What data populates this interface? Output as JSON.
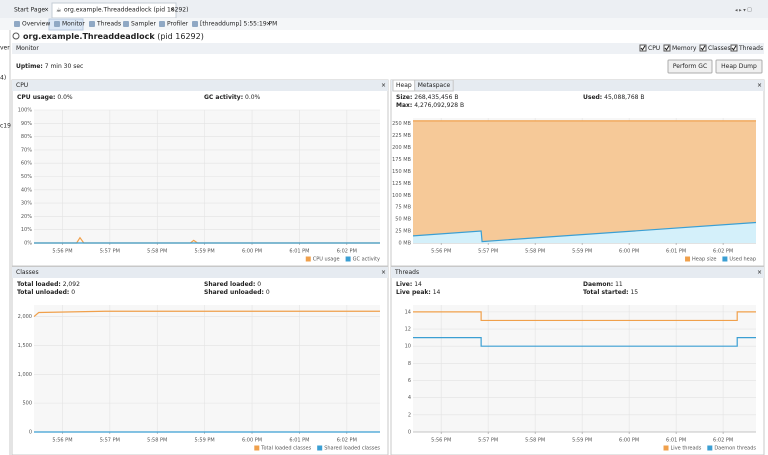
{
  "tabs": [
    "Start Page",
    "org.example.Threaddeadlock (pid 16292)"
  ],
  "left_sliver": [
    "ver",
    "4)",
    "c19"
  ],
  "subtabs": [
    "Overview",
    "Monitor",
    "Threads",
    "Sampler",
    "Profiler",
    "[threaddump] 5:55:19 PM"
  ],
  "header": {
    "title": "org.example.Threaddeadlock",
    "pid": "(pid 16292)"
  },
  "monitor": {
    "label": "Monitor",
    "checkboxes": [
      "CPU",
      "Memory",
      "Classes",
      "Threads"
    ],
    "uptime_label": "Uptime:",
    "uptime_value": "7 min 30 sec",
    "buttons": [
      "Perform GC",
      "Heap Dump"
    ]
  },
  "chart_data": [
    {
      "type": "line",
      "title": "CPU",
      "stats": [
        {
          "label": "CPU usage:",
          "value": "0.0%"
        },
        {
          "label": "GC activity:",
          "value": "0.0%"
        }
      ],
      "xlim": [
        1075.4,
        1082.7
      ],
      "xticks": [
        {
          "value": 1076,
          "label": "5:56 PM"
        },
        {
          "value": 1077,
          "label": "5:57 PM"
        },
        {
          "value": 1078,
          "label": "5:58 PM"
        },
        {
          "value": 1079,
          "label": "5:59 PM"
        },
        {
          "value": 1080,
          "label": "6:00 PM"
        },
        {
          "value": 1081,
          "label": "6:01 PM"
        },
        {
          "value": 1082,
          "label": "6:02 PM"
        }
      ],
      "ylim": [
        0,
        100
      ],
      "yticks": [
        {
          "value": 0,
          "label": "0%"
        },
        {
          "value": 10,
          "label": "10%"
        },
        {
          "value": 20,
          "label": "20%"
        },
        {
          "value": 30,
          "label": "30%"
        },
        {
          "value": 40,
          "label": "40%"
        },
        {
          "value": 50,
          "label": "50%"
        },
        {
          "value": 60,
          "label": "60%"
        },
        {
          "value": 70,
          "label": "70%"
        },
        {
          "value": 80,
          "label": "80%"
        },
        {
          "value": 90,
          "label": "90%"
        },
        {
          "value": 100,
          "label": "100%"
        }
      ],
      "series": [
        {
          "name": "CPU usage",
          "color": "#f0a04b",
          "x": [
            1075.4,
            1076.3,
            1076.37,
            1076.45,
            1078.7,
            1078.77,
            1078.85,
            1082.7
          ],
          "values": [
            0,
            0,
            4,
            0,
            0,
            2,
            0,
            0
          ]
        },
        {
          "name": "GC activity",
          "color": "#3b9fd3",
          "x": [
            1075.4,
            1082.7
          ],
          "values": [
            0,
            0
          ]
        }
      ]
    },
    {
      "type": "area",
      "tabs": [
        "Heap",
        "Metaspace"
      ],
      "stats": [
        {
          "label": "Size:",
          "value": "268,435,456 B"
        },
        {
          "label": "Used:",
          "value": "45,088,768 B"
        },
        {
          "label": "Max:",
          "value": "4,276,092,928 B"
        }
      ],
      "xlim": [
        1075.4,
        1082.7
      ],
      "xticks": [
        {
          "value": 1076,
          "label": "5:56 PM"
        },
        {
          "value": 1077,
          "label": "5:57 PM"
        },
        {
          "value": 1078,
          "label": "5:58 PM"
        },
        {
          "value": 1079,
          "label": "5:59 PM"
        },
        {
          "value": 1080,
          "label": "6:00 PM"
        },
        {
          "value": 1081,
          "label": "6:01 PM"
        },
        {
          "value": 1082,
          "label": "6:02 PM"
        }
      ],
      "ylim": [
        0,
        262
      ],
      "yticks": [
        {
          "value": 0,
          "label": "0 MB"
        },
        {
          "value": 25,
          "label": "25 MB"
        },
        {
          "value": 50,
          "label": "50 MB"
        },
        {
          "value": 75,
          "label": "75 MB"
        },
        {
          "value": 100,
          "label": "100 MB"
        },
        {
          "value": 125,
          "label": "125 MB"
        },
        {
          "value": 150,
          "label": "150 MB"
        },
        {
          "value": 175,
          "label": "175 MB"
        },
        {
          "value": 200,
          "label": "200 MB"
        },
        {
          "value": 225,
          "label": "225 MB"
        },
        {
          "value": 250,
          "label": "250 MB"
        }
      ],
      "series": [
        {
          "name": "Heap size",
          "color": "#f0a04b",
          "fill_color": "#f6c998",
          "x": [
            1075.4,
            1082.7
          ],
          "values": [
            256,
            256
          ]
        },
        {
          "name": "Used heap",
          "color": "#3b9fd3",
          "fill_color": "#d4f0fa",
          "x": [
            1075.4,
            1076.85,
            1076.87,
            1082.7
          ],
          "values": [
            15,
            25,
            3,
            43
          ]
        }
      ]
    },
    {
      "type": "line",
      "title": "Classes",
      "stats": [
        {
          "label": "Total loaded:",
          "value": "2,092"
        },
        {
          "label": "Shared loaded:",
          "value": "0"
        },
        {
          "label": "Total unloaded:",
          "value": "0"
        },
        {
          "label": "Shared unloaded:",
          "value": "0"
        }
      ],
      "xlim": [
        1075.4,
        1082.7
      ],
      "xticks": [
        {
          "value": 1076,
          "label": "5:56 PM"
        },
        {
          "value": 1077,
          "label": "5:57 PM"
        },
        {
          "value": 1078,
          "label": "5:58 PM"
        },
        {
          "value": 1079,
          "label": "5:59 PM"
        },
        {
          "value": 1080,
          "label": "6:00 PM"
        },
        {
          "value": 1081,
          "label": "6:01 PM"
        },
        {
          "value": 1082,
          "label": "6:02 PM"
        }
      ],
      "ylim": [
        0,
        2200
      ],
      "yticks": [
        0,
        500,
        {
          "value": 1000,
          "label": "1,000"
        },
        {
          "value": 1500,
          "label": "1,500"
        },
        {
          "value": 2000,
          "label": "2,000"
        }
      ],
      "series": [
        {
          "name": "Total loaded classes",
          "color": "#f0a04b",
          "x": [
            1075.4,
            1075.5,
            1076.9,
            1082.7
          ],
          "values": [
            2000,
            2070,
            2092,
            2092
          ]
        },
        {
          "name": "Shared loaded classes",
          "color": "#3b9fd3",
          "x": [
            1075.4,
            1082.7
          ],
          "values": [
            0,
            0
          ]
        }
      ]
    },
    {
      "type": "line",
      "title": "Threads",
      "stats": [
        {
          "label": "Live:",
          "value": "14"
        },
        {
          "label": "Daemon:",
          "value": "11"
        },
        {
          "label": "Live peak:",
          "value": "14"
        },
        {
          "label": "Total started:",
          "value": "15"
        }
      ],
      "xlim": [
        1075.4,
        1082.7
      ],
      "xticks": [
        {
          "value": 1076,
          "label": "5:56 PM"
        },
        {
          "value": 1077,
          "label": "5:57 PM"
        },
        {
          "value": 1078,
          "label": "5:58 PM"
        },
        {
          "value": 1079,
          "label": "5:59 PM"
        },
        {
          "value": 1080,
          "label": "6:00 PM"
        },
        {
          "value": 1081,
          "label": "6:01 PM"
        },
        {
          "value": 1082,
          "label": "6:02 PM"
        }
      ],
      "ylim": [
        0,
        14.8
      ],
      "yticks": [
        0,
        2,
        4,
        6,
        8,
        10,
        12,
        14
      ],
      "series": [
        {
          "name": "Live threads",
          "color": "#f0a04b",
          "x": [
            1075.4,
            1076.85,
            1076.85,
            1082.3,
            1082.3,
            1082.7
          ],
          "values": [
            14,
            14,
            13,
            13,
            14,
            14
          ]
        },
        {
          "name": "Daemon threads",
          "color": "#3b9fd3",
          "x": [
            1075.4,
            1076.85,
            1076.85,
            1082.3,
            1082.3,
            1082.7
          ],
          "values": [
            11,
            11,
            10,
            10,
            11,
            11
          ]
        }
      ]
    }
  ]
}
